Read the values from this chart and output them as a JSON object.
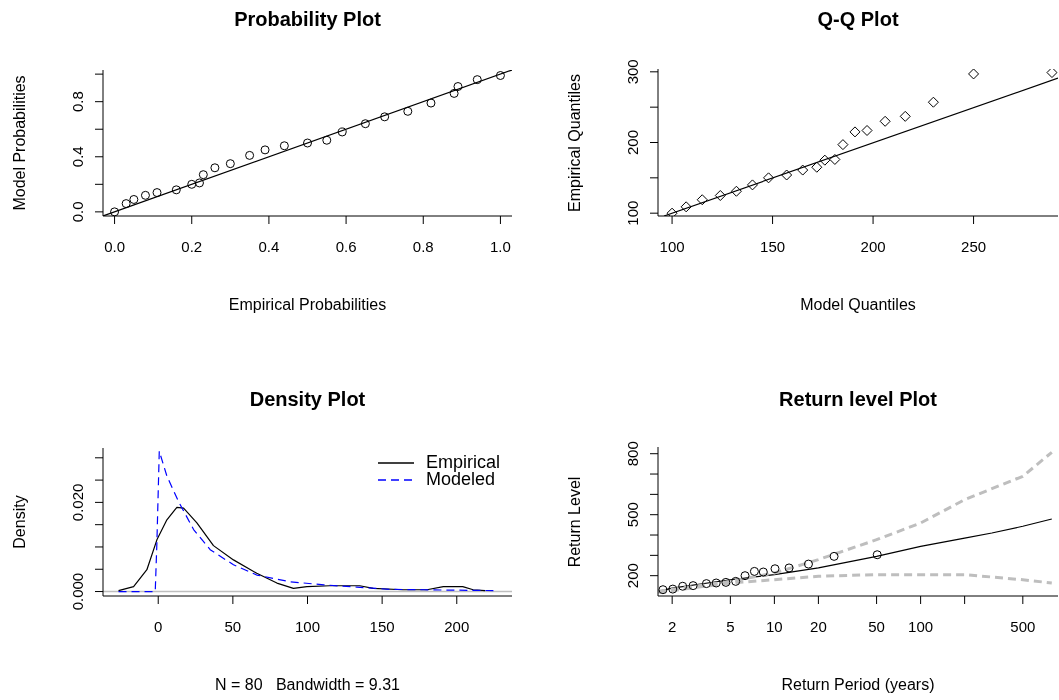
{
  "chart_data": [
    {
      "type": "scatter",
      "title": "Probability Plot",
      "xlabel": "Empirical Probabilities",
      "ylabel": "Model Probabilities",
      "xlim": [
        -0.03,
        1.03
      ],
      "ylim": [
        -0.03,
        1.03
      ],
      "xticks": [
        {
          "value": 0,
          "label": "0.0"
        },
        0.2,
        0.4,
        0.6,
        0.8,
        {
          "value": 1,
          "label": "1.0"
        }
      ],
      "yticks": [
        {
          "value": 0,
          "label": "0.0"
        },
        {
          "value": 0.2,
          "label": null
        },
        0.4,
        {
          "value": 0.6,
          "label": null
        },
        0.8,
        {
          "value": 1,
          "label": null
        }
      ],
      "series": [
        {
          "marker": "circle",
          "color": "#000000",
          "x": [
            0,
            0.03,
            0.05,
            0.08,
            0.11,
            0.16,
            0.2,
            0.22,
            0.23,
            0.26,
            0.3,
            0.35,
            0.39,
            0.44,
            0.5,
            0.55,
            0.59,
            0.65,
            0.7,
            0.76,
            0.82,
            0.88,
            0.89,
            0.94,
            1.0
          ],
          "values": [
            0,
            0.06,
            0.09,
            0.12,
            0.14,
            0.16,
            0.2,
            0.21,
            0.27,
            0.32,
            0.35,
            0.41,
            0.45,
            0.48,
            0.5,
            0.52,
            0.58,
            0.64,
            0.69,
            0.73,
            0.79,
            0.86,
            0.91,
            0.96,
            0.99
          ]
        },
        {
          "type": "line",
          "color": "#000000",
          "x": [
            -0.03,
            1.03
          ],
          "values": [
            -0.03,
            1.03
          ]
        }
      ]
    },
    {
      "type": "scatter",
      "title": "Q-Q Plot",
      "xlabel": "Model Quantiles",
      "ylabel": "Empirical Quantiles",
      "xlim": [
        93,
        292
      ],
      "ylim": [
        96,
        304
      ],
      "xticks": [
        100,
        150,
        200,
        250
      ],
      "yticks": [
        100,
        {
          "value": 150,
          "label": null
        },
        200,
        {
          "value": 250,
          "label": null
        },
        300
      ],
      "series": [
        {
          "marker": "diamond",
          "color": "#000000",
          "x": [
            100,
            107,
            115,
            124,
            132,
            140,
            148,
            157,
            165,
            172,
            176,
            181,
            185,
            191,
            197,
            206,
            216,
            230,
            250,
            289
          ],
          "values": [
            100,
            109,
            119,
            125,
            131,
            140,
            150,
            154,
            161,
            165,
            175,
            176,
            197,
            215,
            217,
            230,
            237,
            257,
            297,
            299
          ]
        },
        {
          "type": "line",
          "color": "#000000",
          "x": [
            96,
            292
          ],
          "values": [
            96,
            291
          ]
        }
      ]
    },
    {
      "type": "line",
      "title": "Density Plot",
      "xlabel": "N = 80   Bandwidth = 9.31",
      "ylabel": "Density",
      "xlim": [
        -37,
        237
      ],
      "ylim": [
        -0.001,
        0.0322
      ],
      "xticks": [
        0,
        50,
        100,
        150,
        200
      ],
      "yticks": [
        {
          "value": 0,
          "label": "0.000"
        },
        {
          "value": 0.005,
          "label": null
        },
        {
          "value": 0.01,
          "label": null
        },
        {
          "value": 0.015,
          "label": null
        },
        {
          "value": 0.02,
          "label": "0.020"
        },
        {
          "value": 0.025,
          "label": null
        },
        {
          "value": 0.03,
          "label": null
        }
      ],
      "legend": "top right",
      "ref_lines": [
        {
          "axis": "y",
          "value": 0,
          "color": "#bebebe"
        }
      ],
      "series": [
        {
          "name": "Empirical",
          "color": "#000000",
          "line_style": "solid",
          "x": [
            -26.6,
            -16.5,
            -7.6,
            -0.9,
            5.8,
            12.5,
            17,
            25.9,
            37,
            50.4,
            66,
            79.5,
            90.6,
            99.6,
            115,
            135,
            144,
            164,
            180,
            191,
            204,
            211,
            219
          ],
          "values": [
            0.0002,
            0.0011,
            0.0049,
            0.0116,
            0.0161,
            0.0189,
            0.0187,
            0.0154,
            0.0103,
            0.0071,
            0.0041,
            0.0019,
            0.0007,
            0.0011,
            0.0013,
            0.0013,
            0.0007,
            0.0004,
            0.0004,
            0.0011,
            0.0011,
            0.0004,
            0.0002
          ]
        },
        {
          "name": "Modeled",
          "color": "#0000ff",
          "line_style": "dashed",
          "x": [
            -26.6,
            -2,
            -0.9,
            0.7,
            5.8,
            13.6,
            23.7,
            34.8,
            50.4,
            66,
            88,
            111,
            133,
            155,
            178,
            226
          ],
          "values": [
            0,
            0,
            0.0109,
            0.0315,
            0.0259,
            0.0202,
            0.0139,
            0.0094,
            0.006,
            0.0037,
            0.0022,
            0.0015,
            0.001,
            0.0005,
            0.0004,
            0.0002
          ]
        }
      ]
    },
    {
      "type": "line",
      "title": "Return level Plot",
      "xlabel": "Return Period (years)",
      "ylabel": "Return Level",
      "log": "x",
      "xlim": [
        1.6,
        870
      ],
      "ylim": [
        100,
        833
      ],
      "xticks": [
        2,
        5,
        10,
        20,
        50,
        100,
        {
          "value": 200,
          "label": null
        },
        500
      ],
      "yticks": [
        200,
        {
          "value": 300,
          "label": null
        },
        {
          "value": 400,
          "label": null
        },
        500,
        {
          "value": 600,
          "label": null
        },
        {
          "value": 700,
          "label": null
        },
        800
      ],
      "series": [
        {
          "color": "#000000",
          "line_style": "solid",
          "x": [
            1.6,
            2,
            5,
            10,
            20,
            50,
            100,
            200,
            307,
            500,
            789
          ],
          "values": [
            123,
            139,
            180,
            205,
            238,
            295,
            344,
            385,
            410,
            443,
            479
          ]
        },
        {
          "color": "#bebebe",
          "line_style": "dashed",
          "x": [
            1.6,
            5,
            10,
            20,
            50,
            100,
            200,
            500,
            789
          ],
          "values": [
            123,
            172,
            213,
            279,
            377,
            459,
            574,
            689,
            807
          ]
        },
        {
          "color": "#bebebe",
          "line_style": "dashed",
          "x": [
            1.6,
            5,
            10,
            20,
            50,
            100,
            200,
            500,
            789
          ],
          "values": [
            118,
            164,
            180,
            197,
            205,
            205,
            205,
            180,
            164
          ]
        },
        {
          "type": "scatter",
          "marker": "circle",
          "color": "#000000",
          "x": [
            1.73,
            2.02,
            2.36,
            2.78,
            3.43,
            4.0,
            4.66,
            5.44,
            6.3,
            7.3,
            8.4,
            10.1,
            12.6,
            17.1,
            25.6,
            50.5
          ],
          "values": [
            131,
            134,
            148,
            151,
            161,
            164,
            167,
            172,
            200,
            221,
            218,
            234,
            238,
            257,
            295,
            303
          ]
        }
      ]
    }
  ]
}
